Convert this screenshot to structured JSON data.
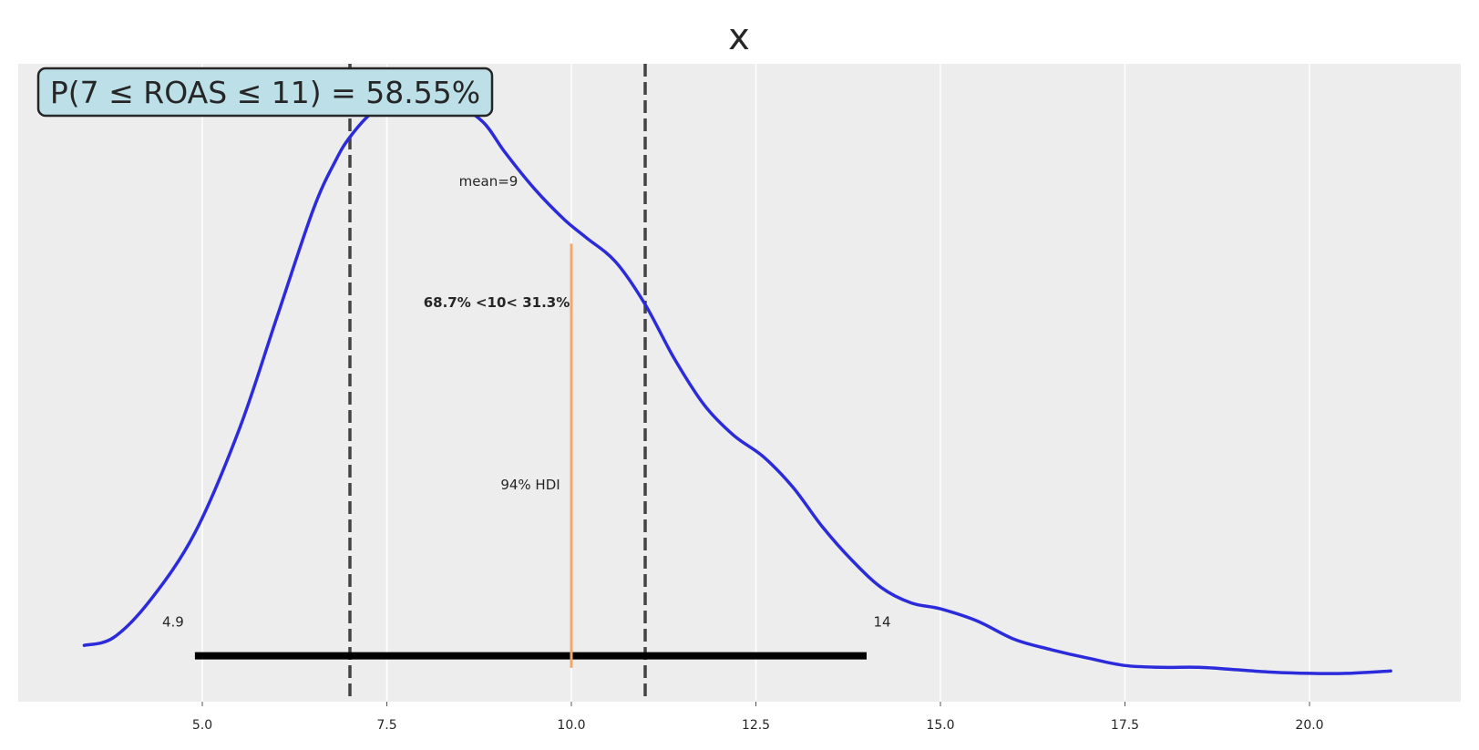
{
  "chart_data": {
    "type": "line",
    "title": "x",
    "xlabel": "",
    "ylabel": "",
    "xlim": [
      2.9,
      21.8
    ],
    "ylim": [
      0,
      1.0
    ],
    "grid": true,
    "x_ticks": [
      5.0,
      7.5,
      10.0,
      12.5,
      15.0,
      17.5,
      20.0
    ],
    "x_tick_labels": [
      "5.0",
      "7.5",
      "10.0",
      "12.5",
      "15.0",
      "17.5",
      "20.0"
    ],
    "density": {
      "color": "#2b2bdc",
      "x": [
        3.4,
        3.8,
        4.3,
        4.9,
        5.5,
        6.0,
        6.5,
        6.8,
        7.0,
        7.3,
        7.6,
        8.0,
        8.4,
        8.8,
        9.1,
        9.5,
        9.9,
        10.2,
        10.6,
        11.0,
        11.4,
        11.8,
        12.2,
        12.6,
        13.0,
        13.4,
        13.8,
        14.2,
        14.6,
        15.0,
        15.5,
        16.0,
        16.5,
        17.0,
        17.5,
        18.0,
        18.5,
        19.0,
        19.5,
        20.0,
        20.5,
        21.1
      ],
      "y": [
        0.085,
        0.098,
        0.16,
        0.27,
        0.44,
        0.62,
        0.8,
        0.88,
        0.92,
        0.96,
        0.975,
        0.98,
        0.975,
        0.945,
        0.895,
        0.835,
        0.785,
        0.755,
        0.715,
        0.645,
        0.555,
        0.48,
        0.43,
        0.395,
        0.345,
        0.28,
        0.225,
        0.18,
        0.155,
        0.145,
        0.125,
        0.095,
        0.078,
        0.064,
        0.052,
        0.049,
        0.049,
        0.045,
        0.041,
        0.039,
        0.039,
        0.043
      ]
    },
    "interval_lines": [
      {
        "x": 7,
        "style": "dashed",
        "color": "#444444"
      },
      {
        "x": 11,
        "style": "dashed",
        "color": "#444444"
      }
    ],
    "reference": {
      "x": 10,
      "color": "#f5a66b",
      "y_from": 0.048,
      "y_to": 0.745
    },
    "hdi": {
      "low": 4.9,
      "high": 14,
      "low_label": "4.9",
      "high_label": "14",
      "label": "94% HDI",
      "y": 0.068
    },
    "mean": {
      "value": 9,
      "label": "mean=9"
    },
    "reference_label": {
      "text": "68.7% <10< 31.3%",
      "color": "#f0801f"
    },
    "probability_box": {
      "text": "P(7 ≤ ROAS ≤ 11) = 58.55%",
      "background": "#bcdfe8",
      "border": "#262626"
    },
    "colors": {
      "plot_background": "#ededed",
      "grid": "#ffffff",
      "hdi_bar": "#000000"
    }
  }
}
